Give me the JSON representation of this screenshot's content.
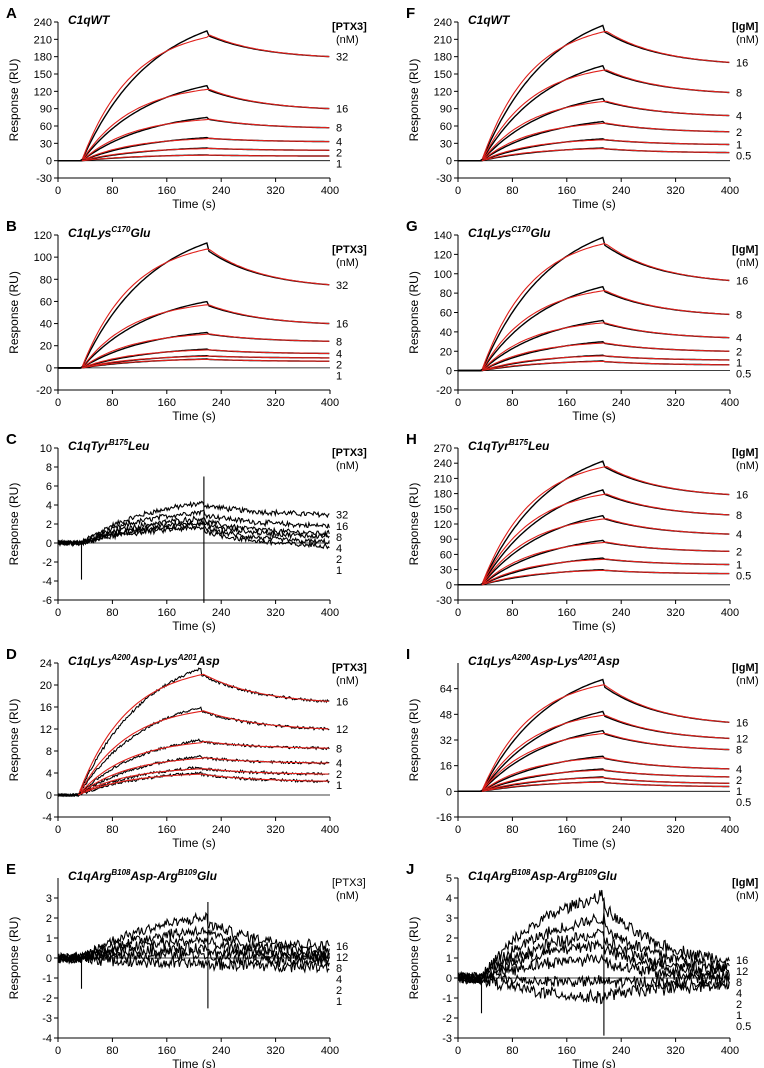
{
  "colors": {
    "measured": "#000000",
    "fit": "#e0201b"
  },
  "chart_data": [
    {
      "id": "A",
      "type": "line",
      "title": "C1qWT",
      "title_parts": [
        {
          "t": "C1qWT",
          "sup": false
        }
      ],
      "analyte": "[PTX3]",
      "analyte_bold": true,
      "unit": "(nM)",
      "xlabel": "Time (s)",
      "ylabel": "Response (RU)",
      "xlim": [
        0,
        400
      ],
      "xticks": [
        0,
        80,
        160,
        240,
        320,
        400
      ],
      "ylim": [
        -30,
        240
      ],
      "yticks": [
        -30,
        0,
        30,
        60,
        90,
        120,
        150,
        180,
        210,
        240
      ],
      "inject_start": 35,
      "inject_end": 220,
      "fit": true,
      "noise": 0,
      "spike": 0,
      "series": [
        {
          "name": "32",
          "peak": 225,
          "end": 180
        },
        {
          "name": "16",
          "peak": 130,
          "end": 90
        },
        {
          "name": "8",
          "peak": 75,
          "end": 57
        },
        {
          "name": "4",
          "peak": 40,
          "end": 33
        },
        {
          "name": "2",
          "peak": 22,
          "end": 18
        },
        {
          "name": "1",
          "peak": 10,
          "end": 8
        }
      ]
    },
    {
      "id": "F",
      "type": "line",
      "title": "C1qWT",
      "title_parts": [
        {
          "t": "C1qWT",
          "sup": false
        }
      ],
      "analyte": "[IgM]",
      "analyte_bold": true,
      "unit": "(nM)",
      "xlabel": "Time (s)",
      "ylabel": "Response (RU)",
      "xlim": [
        0,
        400
      ],
      "xticks": [
        0,
        80,
        160,
        240,
        320,
        400
      ],
      "ylim": [
        -30,
        240
      ],
      "yticks": [
        -30,
        0,
        30,
        60,
        90,
        120,
        150,
        180,
        210,
        240
      ],
      "inject_start": 35,
      "inject_end": 215,
      "fit": true,
      "noise": 0,
      "spike": 0,
      "series": [
        {
          "name": "16",
          "peak": 235,
          "end": 170
        },
        {
          "name": "8",
          "peak": 165,
          "end": 118
        },
        {
          "name": "4",
          "peak": 108,
          "end": 78
        },
        {
          "name": "2",
          "peak": 68,
          "end": 50
        },
        {
          "name": "1",
          "peak": 38,
          "end": 28
        },
        {
          "name": "0.5",
          "peak": 22,
          "end": 14
        }
      ]
    },
    {
      "id": "B",
      "type": "line",
      "title": "C1qLysC170Glu",
      "title_parts": [
        {
          "t": "C1qLys",
          "sup": false
        },
        {
          "t": "C170",
          "sup": true
        },
        {
          "t": "Glu",
          "sup": false
        }
      ],
      "analyte": "[PTX3]",
      "analyte_bold": true,
      "unit": "(nM)",
      "xlabel": "Time (s)",
      "ylabel": "Response (RU)",
      "xlim": [
        0,
        400
      ],
      "xticks": [
        0,
        80,
        160,
        240,
        320,
        400
      ],
      "ylim": [
        -20,
        120
      ],
      "yticks": [
        -20,
        0,
        20,
        40,
        60,
        80,
        100,
        120
      ],
      "inject_start": 35,
      "inject_end": 220,
      "fit": true,
      "noise": 0,
      "spike": 0,
      "series": [
        {
          "name": "32",
          "peak": 113,
          "end": 75
        },
        {
          "name": "16",
          "peak": 60,
          "end": 40
        },
        {
          "name": "8",
          "peak": 32,
          "end": 24
        },
        {
          "name": "4",
          "peak": 17,
          "end": 13
        },
        {
          "name": "2",
          "peak": 11,
          "end": 9
        },
        {
          "name": "1",
          "peak": 8,
          "end": 6
        }
      ]
    },
    {
      "id": "G",
      "type": "line",
      "title": "C1qLysC170Glu",
      "title_parts": [
        {
          "t": "C1qLys",
          "sup": false
        },
        {
          "t": "C170",
          "sup": true
        },
        {
          "t": "Glu",
          "sup": false
        }
      ],
      "analyte": "[IgM]",
      "analyte_bold": true,
      "unit": "(nM)",
      "xlabel": "Time (s)",
      "ylabel": "Response (RU)",
      "xlim": [
        0,
        400
      ],
      "xticks": [
        0,
        80,
        160,
        240,
        320,
        400
      ],
      "ylim": [
        -20,
        140
      ],
      "yticks": [
        -20,
        0,
        20,
        40,
        60,
        80,
        100,
        120,
        140
      ],
      "inject_start": 35,
      "inject_end": 215,
      "fit": true,
      "noise": 0,
      "spike": 0,
      "series": [
        {
          "name": "16",
          "peak": 138,
          "end": 93
        },
        {
          "name": "8",
          "peak": 87,
          "end": 58
        },
        {
          "name": "4",
          "peak": 52,
          "end": 34
        },
        {
          "name": "2",
          "peak": 30,
          "end": 20
        },
        {
          "name": "1",
          "peak": 16,
          "end": 11
        },
        {
          "name": "0.5",
          "peak": 10,
          "end": 6
        }
      ]
    },
    {
      "id": "C",
      "type": "line",
      "title": "C1qTyrB175Leu",
      "title_parts": [
        {
          "t": "C1qTyr",
          "sup": false
        },
        {
          "t": "B175",
          "sup": true
        },
        {
          "t": "Leu",
          "sup": false
        }
      ],
      "analyte": "[PTX3]",
      "analyte_bold": true,
      "unit": "(nM)",
      "xlabel": "Time (s)",
      "ylabel": "Response (RU)",
      "xlim": [
        0,
        400
      ],
      "xticks": [
        0,
        80,
        160,
        240,
        320,
        400
      ],
      "ylim": [
        -6,
        10
      ],
      "yticks": [
        -6,
        -4,
        -2,
        0,
        2,
        4,
        6,
        8,
        10
      ],
      "inject_start": 35,
      "inject_end": 215,
      "fit": false,
      "noise": 0.25,
      "spike": 7,
      "series": [
        {
          "name": "32",
          "peak": 4.2,
          "end": 3.0
        },
        {
          "name": "16",
          "peak": 3.3,
          "end": 1.8
        },
        {
          "name": "8",
          "peak": 2.6,
          "end": 1.0
        },
        {
          "name": "4",
          "peak": 2.2,
          "end": 0.7
        },
        {
          "name": "2",
          "peak": 1.9,
          "end": 0.1
        },
        {
          "name": "1",
          "peak": 1.6,
          "end": -0.3
        }
      ]
    },
    {
      "id": "H",
      "type": "line",
      "title": "C1qTyrB175Leu",
      "title_parts": [
        {
          "t": "C1qTyr",
          "sup": false
        },
        {
          "t": "B175",
          "sup": true
        },
        {
          "t": "Leu",
          "sup": false
        }
      ],
      "analyte": "[IgM]",
      "analyte_bold": true,
      "unit": "(nM)",
      "xlabel": "Time (s)",
      "ylabel": "Response (RU)",
      "xlim": [
        0,
        400
      ],
      "xticks": [
        0,
        80,
        160,
        240,
        320,
        400
      ],
      "ylim": [
        -30,
        270
      ],
      "yticks": [
        -30,
        0,
        30,
        60,
        90,
        120,
        150,
        180,
        210,
        240,
        270
      ],
      "inject_start": 35,
      "inject_end": 215,
      "fit": true,
      "noise": 0,
      "spike": 0,
      "series": [
        {
          "name": "16",
          "peak": 245,
          "end": 178
        },
        {
          "name": "8",
          "peak": 188,
          "end": 138
        },
        {
          "name": "4",
          "peak": 137,
          "end": 100
        },
        {
          "name": "2",
          "peak": 88,
          "end": 66
        },
        {
          "name": "1",
          "peak": 53,
          "end": 40
        },
        {
          "name": "0.5",
          "peak": 30,
          "end": 22
        }
      ]
    },
    {
      "id": "D",
      "type": "line",
      "title": "C1qLysA200Asp-LysA201Asp",
      "title_parts": [
        {
          "t": "C1qLys",
          "sup": false
        },
        {
          "t": "A200",
          "sup": true
        },
        {
          "t": "Asp-Lys",
          "sup": false
        },
        {
          "t": "A201",
          "sup": true
        },
        {
          "t": "Asp",
          "sup": false
        }
      ],
      "analyte": "[PTX3]",
      "analyte_bold": true,
      "unit": "(nM)",
      "xlabel": "Time (s)",
      "ylabel": "Response (RU)",
      "xlim": [
        0,
        400
      ],
      "xticks": [
        0,
        80,
        160,
        240,
        320,
        400
      ],
      "ylim": [
        -4,
        24
      ],
      "yticks": [
        -4,
        0,
        4,
        8,
        12,
        16,
        20,
        24
      ],
      "inject_start": 30,
      "inject_end": 210,
      "fit": true,
      "noise": 0.22,
      "spike": 0,
      "series": [
        {
          "name": "16",
          "peak": 23,
          "end": 17
        },
        {
          "name": "12",
          "peak": 16,
          "end": 12
        },
        {
          "name": "8",
          "peak": 10,
          "end": 8.5
        },
        {
          "name": "4",
          "peak": 7,
          "end": 5.8
        },
        {
          "name": "2",
          "peak": 5,
          "end": 3.8
        },
        {
          "name": "1",
          "peak": 4,
          "end": 2.5
        }
      ]
    },
    {
      "id": "I",
      "type": "line",
      "title": "C1qLysA200Asp-LysA201Asp",
      "title_parts": [
        {
          "t": "C1qLys",
          "sup": false
        },
        {
          "t": "A200",
          "sup": true
        },
        {
          "t": "Asp-Lys",
          "sup": false
        },
        {
          "t": "A201",
          "sup": true
        },
        {
          "t": "Asp",
          "sup": false
        }
      ],
      "analyte": "[IgM]",
      "analyte_bold": true,
      "unit": "(nM)",
      "xlabel": "Time (s)",
      "ylabel": "Response (RU)",
      "xlim": [
        0,
        400
      ],
      "xticks": [
        0,
        80,
        160,
        240,
        320,
        400
      ],
      "ylim": [
        -16,
        80
      ],
      "yticks": [
        -16,
        0,
        16,
        32,
        48,
        64
      ],
      "inject_start": 35,
      "inject_end": 215,
      "fit": true,
      "noise": 0,
      "spike": 0,
      "series": [
        {
          "name": "16",
          "peak": 70,
          "end": 43
        },
        {
          "name": "12",
          "peak": 50,
          "end": 33
        },
        {
          "name": "8",
          "peak": 38,
          "end": 26
        },
        {
          "name": "4",
          "peak": 22,
          "end": 14
        },
        {
          "name": "2",
          "peak": 14,
          "end": 9
        },
        {
          "name": "1",
          "peak": 9,
          "end": 5
        },
        {
          "name": "0.5",
          "peak": 6,
          "end": 3
        }
      ]
    },
    {
      "id": "E",
      "type": "line",
      "title": "C1qArgB108Asp-ArgB109Glu",
      "title_parts": [
        {
          "t": "C1qArg",
          "sup": false
        },
        {
          "t": "B108",
          "sup": true
        },
        {
          "t": "Asp-Arg",
          "sup": false
        },
        {
          "t": "B109",
          "sup": true
        },
        {
          "t": "Glu",
          "sup": false
        }
      ],
      "analyte": "[PTX3]",
      "analyte_bold": false,
      "unit": "(nM)",
      "xlabel": "Time (s)",
      "ylabel": "Response (RU)",
      "xlim": [
        0,
        400
      ],
      "xticks": [
        0,
        80,
        160,
        240,
        320,
        400
      ],
      "ylim": [
        -4,
        4
      ],
      "yticks": [
        -4,
        -3,
        -2,
        -1,
        0,
        1,
        2,
        3
      ],
      "inject_start": 35,
      "inject_end": 220,
      "fit": false,
      "noise": 0.25,
      "spike": 2.8,
      "series": [
        {
          "name": "16",
          "peak": 2.0,
          "end": 0.6
        },
        {
          "name": "12",
          "peak": 1.4,
          "end": 0.3
        },
        {
          "name": "8",
          "peak": 0.9,
          "end": 0.1
        },
        {
          "name": "4",
          "peak": 0.5,
          "end": 0.0
        },
        {
          "name": "2",
          "peak": 0.2,
          "end": -0.2
        },
        {
          "name": "1",
          "peak": -0.3,
          "end": -0.4
        }
      ]
    },
    {
      "id": "J",
      "type": "line",
      "title": "C1qArgB108Asp-ArgB109Glu",
      "title_parts": [
        {
          "t": "C1qArg",
          "sup": false
        },
        {
          "t": "B108",
          "sup": true
        },
        {
          "t": "Asp-Arg",
          "sup": false
        },
        {
          "t": "B109",
          "sup": true
        },
        {
          "t": "Glu",
          "sup": false
        }
      ],
      "analyte": "[IgM]",
      "analyte_bold": true,
      "unit": "(nM)",
      "xlabel": "Time (s)",
      "ylabel": "Response (RU)",
      "xlim": [
        0,
        400
      ],
      "xticks": [
        0,
        80,
        160,
        240,
        320,
        400
      ],
      "ylim": [
        -3,
        5
      ],
      "yticks": [
        -3,
        -2,
        -1,
        0,
        1,
        2,
        3,
        4,
        5
      ],
      "inject_start": 35,
      "inject_end": 215,
      "fit": false,
      "noise": 0.28,
      "spike": 3.2,
      "series": [
        {
          "name": "16",
          "peak": 4.1,
          "end": 0.9
        },
        {
          "name": "12",
          "peak": 3.0,
          "end": 0.6
        },
        {
          "name": "8",
          "peak": 2.2,
          "end": 0.4
        },
        {
          "name": "4",
          "peak": 1.7,
          "end": 0.2
        },
        {
          "name": "2",
          "peak": 1.0,
          "end": 0.0
        },
        {
          "name": "1",
          "peak": -0.2,
          "end": -0.2
        },
        {
          "name": "0.5",
          "peak": -1.0,
          "end": -0.4
        }
      ]
    }
  ]
}
